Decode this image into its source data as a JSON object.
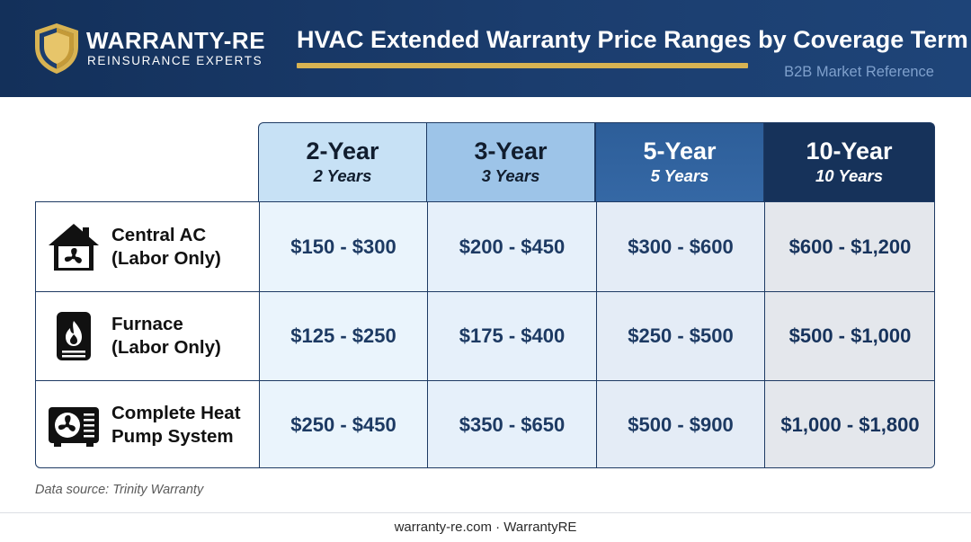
{
  "header": {
    "brand_name": "WARRANTY-RE",
    "brand_sub": "REINSURANCE EXPERTS",
    "title": "HVAC Extended Warranty Price Ranges by Coverage Term",
    "subtitle": "B2B Market Reference",
    "logo_icon": "shield-icon",
    "colors": {
      "background": "#13305a",
      "accent": "#d8b352"
    }
  },
  "chart_data": {
    "type": "table",
    "title": "HVAC Extended Warranty Price Ranges by Coverage Term",
    "subtitle": "B2B Market Reference",
    "columns": [
      {
        "term": "2-Year",
        "years": "2 Years",
        "color": "#c7e1f5"
      },
      {
        "term": "3-Year",
        "years": "3 Years",
        "color": "#9dc4e8"
      },
      {
        "term": "5-Year",
        "years": "5 Years",
        "color": "#3568a5"
      },
      {
        "term": "10-Year",
        "years": "10 Years",
        "color": "#16325a"
      }
    ],
    "rows": [
      {
        "line1": "Central AC",
        "line2": "(Labor Only)",
        "icon": "house-fan-icon",
        "values": [
          "$150 - $300",
          "$200 - $450",
          "$300 - $600",
          "$600 - $1,200"
        ],
        "ranges": [
          [
            150,
            300
          ],
          [
            200,
            450
          ],
          [
            300,
            600
          ],
          [
            600,
            1200
          ]
        ]
      },
      {
        "line1": "Furnace",
        "line2": "(Labor Only)",
        "icon": "furnace-flame-icon",
        "values": [
          "$125 - $250",
          "$175 - $400",
          "$250 - $500",
          "$500 - $1,000"
        ],
        "ranges": [
          [
            125,
            250
          ],
          [
            175,
            400
          ],
          [
            250,
            500
          ],
          [
            500,
            1000
          ]
        ]
      },
      {
        "line1": "Complete Heat",
        "line2": "Pump System",
        "icon": "heat-pump-icon",
        "values": [
          "$250 - $450",
          "$350 - $650",
          "$500 - $900",
          "$1,000 - $1,800"
        ],
        "ranges": [
          [
            250,
            450
          ],
          [
            350,
            650
          ],
          [
            500,
            900
          ],
          [
            1000,
            1800
          ]
        ]
      }
    ]
  },
  "source_note": "Data source: Trinity Warranty",
  "footer": "warranty-re.com · WarrantyRE"
}
